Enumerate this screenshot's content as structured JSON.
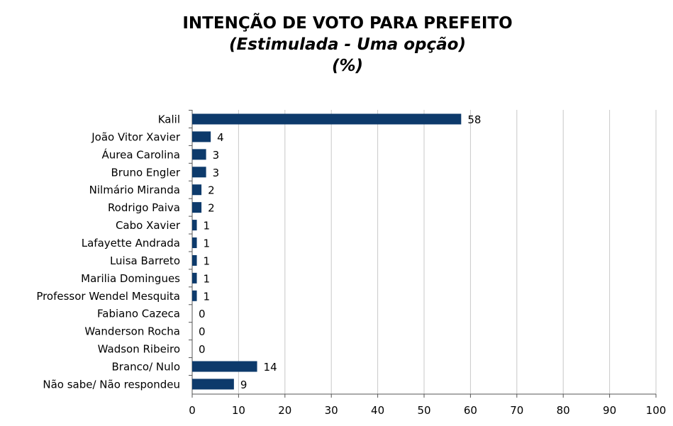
{
  "chart_data": {
    "type": "bar",
    "orientation": "horizontal",
    "title": "INTENÇÃO DE VOTO PARA PREFEITO",
    "subtitle": "(Estimulada - Uma opção)",
    "unit_label": "(%)",
    "categories": [
      "Kalil",
      "João Vitor Xavier",
      "Áurea Carolina",
      "Bruno Engler",
      "Nilmário Miranda",
      "Rodrigo Paiva",
      "Cabo Xavier",
      "Lafayette Andrada",
      "Luisa Barreto",
      "Marilia Domingues",
      "Professor Wendel Mesquita",
      "Fabiano Cazeca",
      "Wanderson Rocha",
      "Wadson Ribeiro",
      "Branco/ Nulo",
      "Não sabe/ Não respondeu"
    ],
    "values": [
      58,
      4,
      3,
      3,
      2,
      2,
      1,
      1,
      1,
      1,
      1,
      0,
      0,
      0,
      14,
      9
    ],
    "xlim": [
      0,
      100
    ],
    "xticks": [
      0,
      10,
      20,
      30,
      40,
      50,
      60,
      70,
      80,
      90,
      100
    ],
    "grid": true,
    "legend": "none",
    "bar_color": "#0d3a6b",
    "grid_color": "#c8c8c8"
  }
}
